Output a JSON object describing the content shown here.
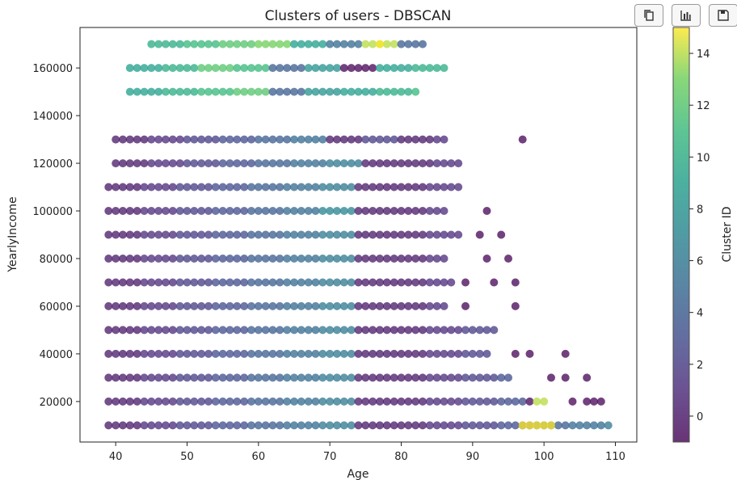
{
  "toolbar": {
    "buttons": [
      {
        "name": "copy-button",
        "icon": "copy-icon"
      },
      {
        "name": "chart-view-button",
        "icon": "bar-chart-icon"
      },
      {
        "name": "save-button",
        "icon": "save-icon"
      }
    ]
  },
  "chart_data": {
    "type": "scatter",
    "title": "Clusters of users - DBSCAN",
    "xlabel": "Age",
    "ylabel": "YearlyIncome",
    "xlim": [
      35,
      113
    ],
    "ylim": [
      3000,
      177000
    ],
    "xticks": [
      40,
      50,
      60,
      70,
      80,
      90,
      100,
      110
    ],
    "yticks": [
      20000,
      40000,
      60000,
      80000,
      100000,
      120000,
      140000,
      160000
    ],
    "xtick_labels": [
      "40",
      "50",
      "60",
      "70",
      "80",
      "90",
      "100",
      "110"
    ],
    "ytick_labels": [
      "20000",
      "40000",
      "60000",
      "80000",
      "100000",
      "120000",
      "140000",
      "160000"
    ],
    "grid": false,
    "colormap": "viridis",
    "colorbar": {
      "label": "Cluster ID",
      "range": [
        -1,
        15
      ],
      "ticks": [
        0,
        2,
        4,
        6,
        8,
        10,
        12,
        14
      ],
      "tick_labels": [
        "0",
        "2",
        "4",
        "6",
        "8",
        "10",
        "12",
        "14"
      ]
    },
    "point_alpha": 0.75,
    "rows": [
      {
        "y": 170000,
        "x_min": 45,
        "x_max": 83,
        "clusters": [
          10,
          11,
          12,
          13,
          9,
          5,
          14,
          4
        ]
      },
      {
        "y": 160000,
        "x_min": 42,
        "x_max": 86,
        "clusters": [
          9,
          10,
          12,
          11,
          4,
          8,
          -1
        ]
      },
      {
        "y": 150000,
        "x_min": 42,
        "x_max": 82,
        "clusters": [
          9,
          10,
          11,
          12,
          4,
          8
        ]
      },
      {
        "y": 130000,
        "x_min": 40,
        "x_max": 86,
        "clusters": [
          0,
          1,
          2,
          3,
          4,
          5,
          0,
          2
        ],
        "outliers": [
          97
        ]
      },
      {
        "y": 120000,
        "x_min": 40,
        "x_max": 88,
        "clusters": [
          0,
          1,
          2,
          3,
          4,
          5,
          6,
          0
        ]
      },
      {
        "y": 110000,
        "x_min": 39,
        "x_max": 88,
        "clusters": [
          0,
          1,
          2,
          3,
          4,
          5,
          6,
          0
        ]
      },
      {
        "y": 100000,
        "x_min": 39,
        "x_max": 86,
        "clusters": [
          0,
          1,
          2,
          3,
          4,
          5,
          7,
          0
        ],
        "outliers": [
          92
        ]
      },
      {
        "y": 90000,
        "x_min": 39,
        "x_max": 88,
        "clusters": [
          0,
          1,
          2,
          3,
          4,
          5,
          6,
          0
        ],
        "outliers": [
          91,
          94
        ]
      },
      {
        "y": 80000,
        "x_min": 39,
        "x_max": 86,
        "clusters": [
          0,
          1,
          2,
          3,
          4,
          5,
          6,
          0
        ],
        "outliers": [
          92,
          95
        ]
      },
      {
        "y": 70000,
        "x_min": 39,
        "x_max": 87,
        "clusters": [
          0,
          1,
          2,
          3,
          4,
          5,
          6,
          0
        ],
        "outliers": [
          89,
          93,
          96
        ]
      },
      {
        "y": 60000,
        "x_min": 39,
        "x_max": 86,
        "clusters": [
          0,
          1,
          2,
          3,
          4,
          5,
          6,
          0
        ],
        "outliers": [
          89,
          96
        ]
      },
      {
        "y": 50000,
        "x_min": 39,
        "x_max": 93,
        "clusters": [
          0,
          1,
          2,
          3,
          4,
          5,
          6,
          0
        ]
      },
      {
        "y": 40000,
        "x_min": 39,
        "x_max": 92,
        "clusters": [
          0,
          1,
          2,
          3,
          4,
          5,
          6,
          0
        ],
        "outliers": [
          96,
          98,
          103
        ]
      },
      {
        "y": 30000,
        "x_min": 39,
        "x_max": 95,
        "clusters": [
          0,
          1,
          2,
          3,
          4,
          5,
          6,
          0
        ],
        "outliers": [
          101,
          103,
          106
        ]
      },
      {
        "y": 20000,
        "x_min": 39,
        "x_max": 97,
        "clusters": [
          0,
          1,
          2,
          3,
          4,
          5,
          6,
          0
        ],
        "outliers": [
          98,
          104,
          106,
          107,
          108
        ]
      },
      {
        "y": 10000,
        "x_min": 39,
        "x_max": 109,
        "clusters": [
          0,
          1,
          2,
          3,
          4,
          5,
          6,
          0
        ]
      }
    ],
    "highlighted_points": [
      {
        "x": 97,
        "y": 10000,
        "cluster": 15
      },
      {
        "x": 98,
        "y": 10000,
        "cluster": 15
      },
      {
        "x": 99,
        "y": 10000,
        "cluster": 15
      },
      {
        "x": 100,
        "y": 10000,
        "cluster": 15
      },
      {
        "x": 101,
        "y": 10000,
        "cluster": 15
      },
      {
        "x": 99,
        "y": 20000,
        "cluster": 14
      },
      {
        "x": 100,
        "y": 20000,
        "cluster": 14
      },
      {
        "x": 77,
        "y": 170000,
        "cluster": 15
      }
    ]
  }
}
